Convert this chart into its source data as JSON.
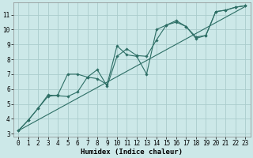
{
  "title": "",
  "xlabel": "Humidex (Indice chaleur)",
  "bg_color": "#cce8e8",
  "line_color": "#2d6e65",
  "grid_color": "#aacccc",
  "xlim": [
    -0.5,
    23.5
  ],
  "ylim": [
    2.8,
    11.8
  ],
  "xticks": [
    0,
    1,
    2,
    3,
    4,
    5,
    6,
    7,
    8,
    9,
    10,
    11,
    12,
    13,
    14,
    15,
    16,
    17,
    18,
    19,
    20,
    21,
    22,
    23
  ],
  "yticks": [
    3,
    4,
    5,
    6,
    7,
    8,
    9,
    10,
    11
  ],
  "straight_line_x": [
    0,
    23
  ],
  "straight_line_y": [
    3.2,
    11.55
  ],
  "line1_x": [
    0,
    1,
    2,
    3,
    4,
    5,
    6,
    7,
    8,
    9,
    10,
    11,
    12,
    13,
    14,
    15,
    16,
    17,
    18,
    19,
    20,
    21,
    22,
    23
  ],
  "line1_y": [
    3.2,
    3.9,
    4.7,
    5.5,
    5.6,
    7.0,
    7.0,
    6.8,
    6.7,
    6.3,
    8.9,
    8.3,
    8.2,
    7.0,
    10.0,
    10.3,
    10.5,
    10.2,
    9.4,
    9.6,
    11.2,
    11.3,
    11.5,
    11.6
  ],
  "line2_x": [
    0,
    1,
    2,
    3,
    4,
    5,
    6,
    7,
    8,
    9,
    10,
    11,
    12,
    13,
    14,
    15,
    16,
    17,
    18,
    19,
    20,
    21,
    22,
    23
  ],
  "line2_y": [
    3.2,
    3.9,
    4.7,
    5.6,
    5.55,
    5.5,
    5.8,
    6.8,
    7.3,
    6.2,
    8.2,
    8.7,
    8.25,
    8.2,
    9.3,
    10.3,
    10.6,
    10.2,
    9.5,
    9.6,
    11.2,
    11.3,
    11.5,
    11.6
  ],
  "tick_fontsize": 5.5,
  "xlabel_fontsize": 6.5
}
